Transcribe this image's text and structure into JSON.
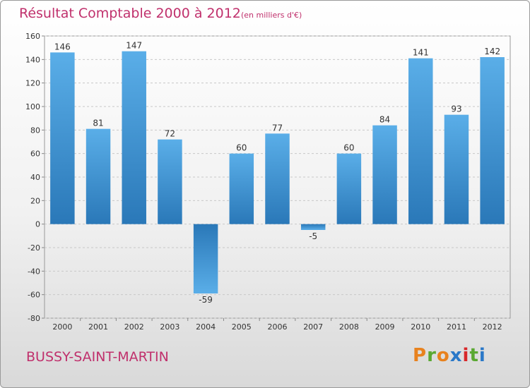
{
  "chart_data": {
    "type": "bar",
    "title": "Résultat Comptable 2000 à 2012",
    "subtitle": "(en milliers d'€)",
    "categories": [
      "2000",
      "2001",
      "2002",
      "2003",
      "2004",
      "2005",
      "2006",
      "2007",
      "2008",
      "2009",
      "2010",
      "2011",
      "2012"
    ],
    "values": [
      146,
      81,
      147,
      72,
      -59,
      60,
      77,
      -5,
      60,
      84,
      141,
      93,
      142
    ],
    "ylim": [
      -80,
      160
    ],
    "yticks": [
      -80,
      -60,
      -40,
      -20,
      0,
      20,
      40,
      60,
      80,
      100,
      120,
      140,
      160
    ],
    "xlabel": "",
    "ylabel": "",
    "grid": "y-dashed",
    "bar_color": "#3d8fd0"
  },
  "footer": {
    "place": "BUSSY-SAINT-MARTIN",
    "logo_text": "Proxiti",
    "logo_colors": [
      "#e8821e",
      "#5aa832",
      "#e8821e",
      "#2a78c8",
      "#d8282a",
      "#5aa832",
      "#2a78c8"
    ]
  }
}
